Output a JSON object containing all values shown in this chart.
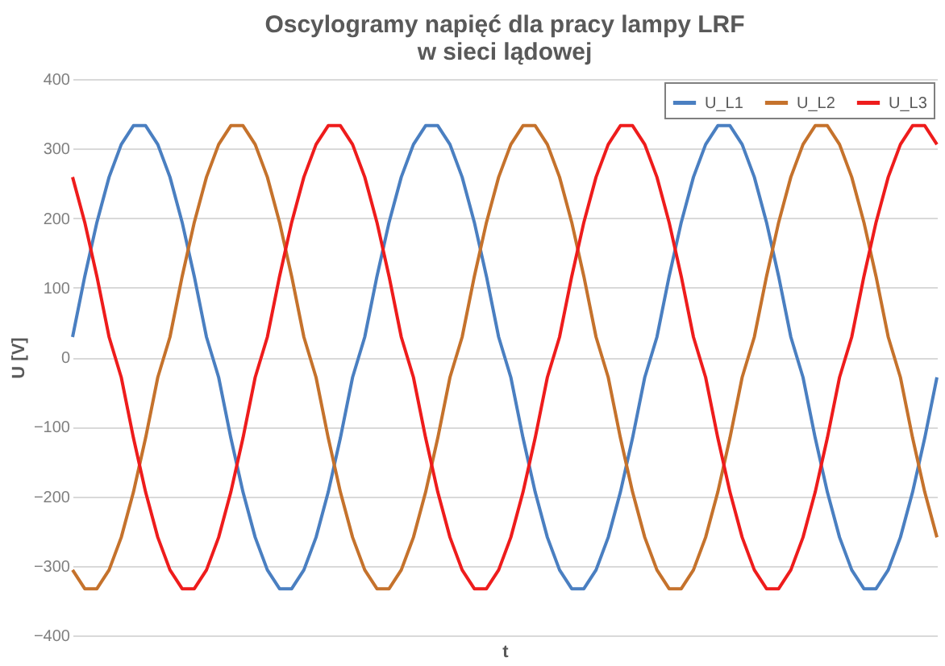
{
  "chart_data": {
    "type": "line",
    "title": "Oscylogramy napięć dla pracy lampy LRF\nw sieci lądowej",
    "xlabel": "t",
    "ylabel": "U [V]",
    "categories": [
      null,
      null,
      null,
      null,
      null,
      null,
      null,
      null,
      null,
      null,
      null,
      null,
      null,
      null,
      null,
      null,
      null,
      null,
      null,
      null,
      null,
      null,
      null,
      null,
      null,
      null,
      null,
      null,
      null,
      null,
      null,
      null,
      null,
      null,
      null,
      null,
      null,
      null,
      null,
      null,
      null,
      null,
      null,
      null,
      null,
      null,
      null,
      null,
      null,
      null,
      null,
      null,
      null,
      null,
      null,
      null,
      null,
      null,
      null,
      null,
      null,
      null,
      null,
      null,
      null,
      null,
      null,
      null,
      null,
      null,
      null,
      null
    ],
    "series": [
      {
        "name": "U_L1",
        "color": "#4a7fc1",
        "values": [
          29,
          116,
          194,
          259,
          306,
          333,
          333,
          306,
          259,
          194,
          116,
          29,
          -29,
          -116,
          -194,
          -259,
          -306,
          -333,
          -333,
          -306,
          -259,
          -194,
          -116,
          -29,
          29,
          116,
          194,
          259,
          306,
          333,
          333,
          306,
          259,
          194,
          116,
          29,
          -29,
          -116,
          -194,
          -259,
          -306,
          -333,
          -333,
          -306,
          -259,
          -194,
          -116,
          -29,
          29,
          116,
          194,
          259,
          306,
          333,
          333,
          306,
          259,
          194,
          116,
          29,
          -29,
          -116,
          -194,
          -259,
          -306,
          -333,
          -333,
          -306,
          -259,
          -194,
          -116,
          -29
        ]
      },
      {
        "name": "U_L2",
        "color": "#c5722c",
        "values": [
          -306,
          -333,
          -333,
          -306,
          -259,
          -194,
          -116,
          -29,
          29,
          116,
          194,
          259,
          306,
          333,
          333,
          306,
          259,
          194,
          116,
          29,
          -29,
          -116,
          -194,
          -259,
          -306,
          -333,
          -333,
          -306,
          -259,
          -194,
          -116,
          -29,
          29,
          116,
          194,
          259,
          306,
          333,
          333,
          306,
          259,
          194,
          116,
          29,
          -29,
          -116,
          -194,
          -259,
          -306,
          -333,
          -333,
          -306,
          -259,
          -194,
          -116,
          -29,
          29,
          116,
          194,
          259,
          306,
          333,
          333,
          306,
          259,
          194,
          116,
          29,
          -29,
          -116,
          -194,
          -259
        ]
      },
      {
        "name": "U_L3",
        "color": "#ee1c1c",
        "values": [
          259,
          194,
          116,
          29,
          -29,
          -116,
          -194,
          -259,
          -306,
          -333,
          -333,
          -306,
          -259,
          -194,
          -116,
          -29,
          29,
          116,
          194,
          259,
          306,
          333,
          333,
          306,
          259,
          194,
          116,
          29,
          -29,
          -116,
          -194,
          -259,
          -306,
          -333,
          -333,
          -306,
          -259,
          -194,
          -116,
          -29,
          29,
          116,
          194,
          259,
          306,
          333,
          333,
          306,
          259,
          194,
          116,
          29,
          -29,
          -116,
          -194,
          -259,
          -306,
          -333,
          -333,
          -306,
          -259,
          -194,
          -116,
          -29,
          29,
          116,
          194,
          259,
          306,
          333,
          333,
          306
        ]
      }
    ],
    "ylim": [
      -400,
      400
    ],
    "yticks": [
      -400,
      -300,
      -200,
      -100,
      0,
      100,
      200,
      300,
      400
    ],
    "grid": "y",
    "legend": "top right",
    "marker": "none",
    "line_style": "solid"
  }
}
